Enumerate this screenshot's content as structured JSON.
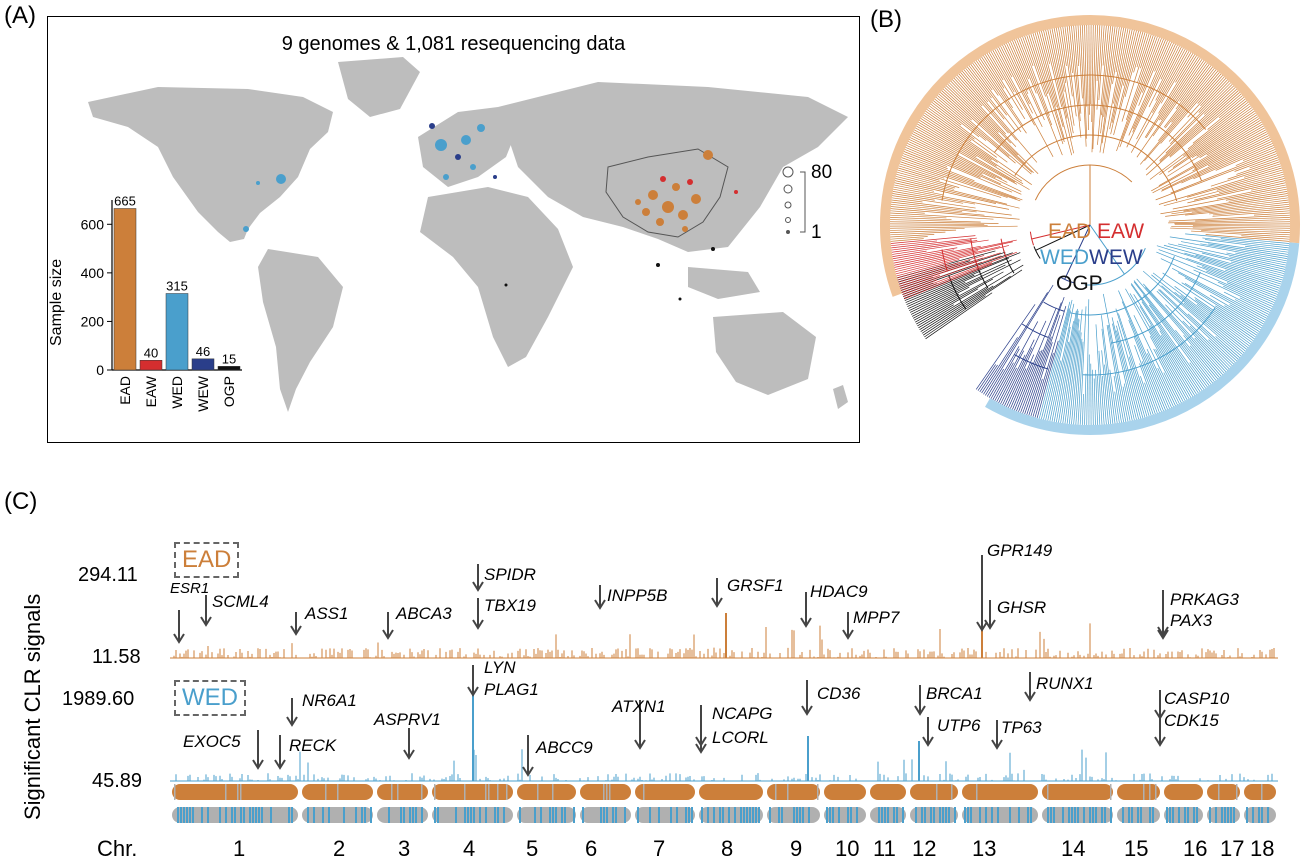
{
  "panels": {
    "a": "(A)",
    "b": "(B)",
    "c": "(C)"
  },
  "panel_a": {
    "title": "9 genomes & 1,081 resequencing data",
    "legend_max": "80",
    "legend_min": "1",
    "colors": {
      "EAD": "#CC7F3A",
      "EAW": "#D42E2F",
      "WED": "#4A9FCC",
      "WEW": "#2A3E8A",
      "OGP": "#111111",
      "land": "#BDBDBD"
    }
  },
  "chart_data": [
    {
      "type": "bar",
      "ylabel": "Sample size",
      "categories": [
        "EAD",
        "EAW",
        "WED",
        "WEW",
        "OGP"
      ],
      "values": [
        665,
        40,
        315,
        46,
        15
      ],
      "value_labels": [
        "665",
        "40",
        "315",
        "46",
        "15"
      ],
      "yticks": [
        "0",
        "200",
        "400",
        "600"
      ],
      "ylim": [
        0,
        700
      ]
    }
  ],
  "panel_b": {
    "legend": [
      {
        "label": "EAD",
        "color": "#CC7F3A"
      },
      {
        "label": "EAW",
        "color": "#D42E2F"
      },
      {
        "label": "WED",
        "color": "#4A9FCC"
      },
      {
        "label": "WEW",
        "color": "#2A3E8A"
      },
      {
        "label": "OGP",
        "color": "#111111"
      }
    ]
  },
  "panel_c": {
    "ylabel": "Significant CLR signals",
    "ead": {
      "tag": "EAD",
      "ymax": "294.11",
      "ymin": "11.58",
      "color": "#CC7F3A"
    },
    "wed": {
      "tag": "WED",
      "ymax": "1989.60",
      "ymin": "45.89",
      "color": "#4A9FCC"
    },
    "chr_label": "Chr.",
    "chromosomes": [
      "1",
      "2",
      "3",
      "4",
      "5",
      "6",
      "7",
      "8",
      "9",
      "10",
      "11",
      "12",
      "13",
      "14",
      "15",
      "16",
      "17",
      "18"
    ],
    "ead_genes": [
      "ESR1",
      "SCML4",
      "ASS1",
      "ABCA3",
      "SPIDR",
      "TBX19",
      "INPP5B",
      "GRSF1",
      "HDAC9",
      "MPP7",
      "GPR149",
      "GHSR",
      "PRKAG3",
      "PAX3"
    ],
    "wed_genes": [
      "EXOC5",
      "NR6A1",
      "RECK",
      "ASPRV1",
      "LYN",
      "PLAG1",
      "ABCC9",
      "ATXN1",
      "NCAPG",
      "LCORL",
      "CD36",
      "BRCA1",
      "UTP6",
      "RUNX1",
      "TP63",
      "CASP10",
      "CDK15"
    ]
  }
}
